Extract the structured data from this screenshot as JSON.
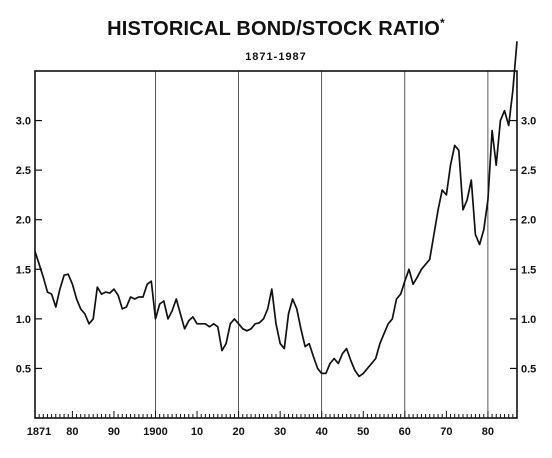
{
  "chart_data": {
    "type": "line",
    "title": "HISTORICAL BOND/STOCK RATIO",
    "title_marker": "*",
    "subtitle": "1871-1987",
    "xlabel": "",
    "ylabel": "",
    "xlim": [
      1871,
      1987
    ],
    "ylim": [
      0,
      3.5
    ],
    "x_tick_labels": [
      {
        "x": 1871,
        "label": "1871"
      },
      {
        "x": 1880,
        "label": "80"
      },
      {
        "x": 1890,
        "label": "90"
      },
      {
        "x": 1900,
        "label": "1900"
      },
      {
        "x": 1910,
        "label": "10"
      },
      {
        "x": 1920,
        "label": "20"
      },
      {
        "x": 1930,
        "label": "30"
      },
      {
        "x": 1940,
        "label": "40"
      },
      {
        "x": 1950,
        "label": "50"
      },
      {
        "x": 1960,
        "label": "60"
      },
      {
        "x": 1970,
        "label": "70"
      },
      {
        "x": 1980,
        "label": "80"
      }
    ],
    "y_tick_labels": [
      {
        "y": 0.5,
        "label": "0.5"
      },
      {
        "y": 1.0,
        "label": "1.0"
      },
      {
        "y": 1.5,
        "label": "1.5"
      },
      {
        "y": 2.0,
        "label": "2.0"
      },
      {
        "y": 2.5,
        "label": "2.5"
      },
      {
        "y": 3.0,
        "label": "3.0"
      }
    ],
    "vertical_gridlines": [
      1900,
      1920,
      1940,
      1960,
      1980
    ],
    "grid": true,
    "series": [
      {
        "x": [
          1871,
          1872,
          1873,
          1874,
          1875,
          1876,
          1877,
          1878,
          1879,
          1880,
          1881,
          1882,
          1883,
          1884,
          1885,
          1886,
          1887,
          1888,
          1889,
          1890,
          1891,
          1892,
          1893,
          1894,
          1895,
          1896,
          1897,
          1898,
          1899,
          1900,
          1901,
          1902,
          1903,
          1904,
          1905,
          1906,
          1907,
          1908,
          1909,
          1910,
          1911,
          1912,
          1913,
          1914,
          1915,
          1916,
          1917,
          1918,
          1919,
          1920,
          1921,
          1922,
          1923,
          1924,
          1925,
          1926,
          1927,
          1928,
          1929,
          1930,
          1931,
          1932,
          1933,
          1934,
          1935,
          1936,
          1937,
          1938,
          1939,
          1940,
          1941,
          1942,
          1943,
          1944,
          1945,
          1946,
          1947,
          1948,
          1949,
          1950,
          1951,
          1952,
          1953,
          1954,
          1955,
          1956,
          1957,
          1958,
          1959,
          1960,
          1961,
          1962,
          1963,
          1964,
          1965,
          1966,
          1967,
          1968,
          1969,
          1970,
          1971,
          1972,
          1973,
          1974,
          1975,
          1976,
          1977,
          1978,
          1979,
          1980,
          1981,
          1982,
          1983,
          1984,
          1985,
          1986,
          1987
        ],
        "y": [
          1.68,
          1.55,
          1.42,
          1.27,
          1.25,
          1.12,
          1.3,
          1.44,
          1.45,
          1.35,
          1.2,
          1.1,
          1.05,
          0.95,
          1.0,
          1.32,
          1.25,
          1.27,
          1.26,
          1.3,
          1.24,
          1.1,
          1.12,
          1.22,
          1.2,
          1.22,
          1.22,
          1.35,
          1.38,
          1.0,
          1.15,
          1.18,
          1.0,
          1.08,
          1.2,
          1.05,
          0.9,
          0.98,
          1.02,
          0.95,
          0.95,
          0.95,
          0.92,
          0.95,
          0.92,
          0.68,
          0.75,
          0.95,
          1.0,
          0.95,
          0.9,
          0.88,
          0.9,
          0.95,
          0.96,
          1.0,
          1.1,
          1.3,
          0.95,
          0.75,
          0.7,
          1.05,
          1.2,
          1.1,
          0.9,
          0.72,
          0.75,
          0.62,
          0.5,
          0.45,
          0.45,
          0.55,
          0.6,
          0.55,
          0.65,
          0.7,
          0.58,
          0.48,
          0.42,
          0.45,
          0.5,
          0.55,
          0.6,
          0.75,
          0.85,
          0.95,
          1.0,
          1.2,
          1.25,
          1.38,
          1.5,
          1.35,
          1.42,
          1.5,
          1.55,
          1.6,
          1.85,
          2.1,
          2.3,
          2.25,
          2.55,
          2.75,
          2.7,
          2.1,
          2.2,
          2.4,
          1.85,
          1.75,
          1.9,
          2.2,
          2.9,
          2.55,
          3.0,
          3.1,
          2.95,
          3.3,
          3.8
        ]
      }
    ]
  }
}
